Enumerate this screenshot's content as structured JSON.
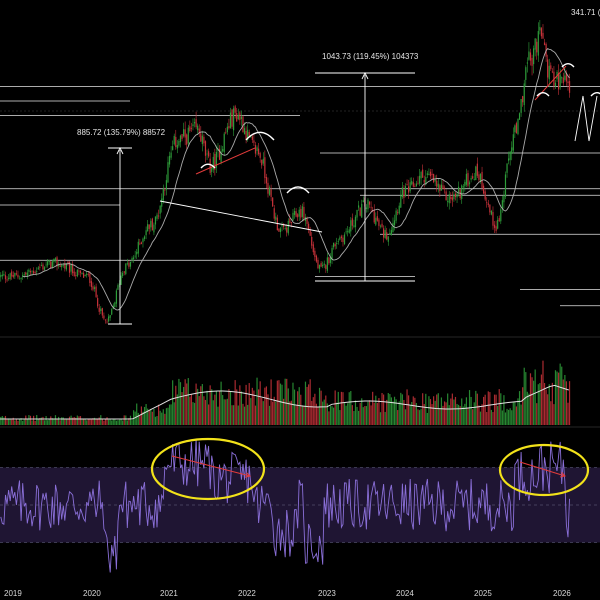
{
  "chart_data": {
    "type": "candlestick",
    "x_axis": {
      "ticks": [
        "2019",
        "2020",
        "2021",
        "2022",
        "2023",
        "2024",
        "2025",
        "2026"
      ]
    },
    "annotations": [
      {
        "id": "move_2020_2021",
        "text": "885.72 (135.79%) 88572"
      },
      {
        "id": "move_2022_2025",
        "text": "1043.73 (119.45%) 104373"
      },
      {
        "id": "move_top_partial",
        "text": "341.71 ("
      }
    ],
    "panels": [
      "price",
      "volume",
      "rsi"
    ],
    "price_series": {
      "anchors": [
        [
          "2019-01",
          560
        ],
        [
          "2019-07",
          600
        ],
        [
          "2019-12",
          560
        ],
        [
          "2020-03",
          420
        ],
        [
          "2020-06",
          590
        ],
        [
          "2020-10",
          720
        ],
        [
          "2021-02",
          980
        ],
        [
          "2021-05",
          1010
        ],
        [
          "2021-07",
          900
        ],
        [
          "2021-11",
          1060
        ],
        [
          "2022-02",
          950
        ],
        [
          "2022-06",
          700
        ],
        [
          "2022-09",
          760
        ],
        [
          "2022-12",
          580
        ],
        [
          "2023-03",
          680
        ],
        [
          "2023-07",
          780
        ],
        [
          "2023-10",
          690
        ],
        [
          "2024-01",
          820
        ],
        [
          "2024-04",
          870
        ],
        [
          "2024-08",
          800
        ],
        [
          "2024-12",
          880
        ],
        [
          "2025-03",
          720
        ],
        [
          "2025-06",
          1000
        ],
        [
          "2025-08",
          1220
        ],
        [
          "2025-10",
          1300
        ],
        [
          "2025-11",
          1200
        ],
        [
          "2026-01",
          1150
        ]
      ],
      "moving_average": "smooth"
    },
    "horizontal_levels": [
      1145,
      1100,
      1055,
      940,
      830,
      810,
      780,
      690,
      610,
      560,
      520,
      470
    ],
    "rsi_band": {
      "upper": 70,
      "lower": 30,
      "mid": 50
    },
    "highlight_circles": 2,
    "colors": {
      "background": "#000000",
      "up": "#2e9d3a",
      "down": "#c8323a",
      "ma": "#bdbdbd",
      "level": "#ffffff",
      "arrow": "#e23b3b",
      "rsi_line": "#8a6fd8",
      "rsi_band": "#1f1533",
      "highlight": "#f2e21a"
    }
  }
}
